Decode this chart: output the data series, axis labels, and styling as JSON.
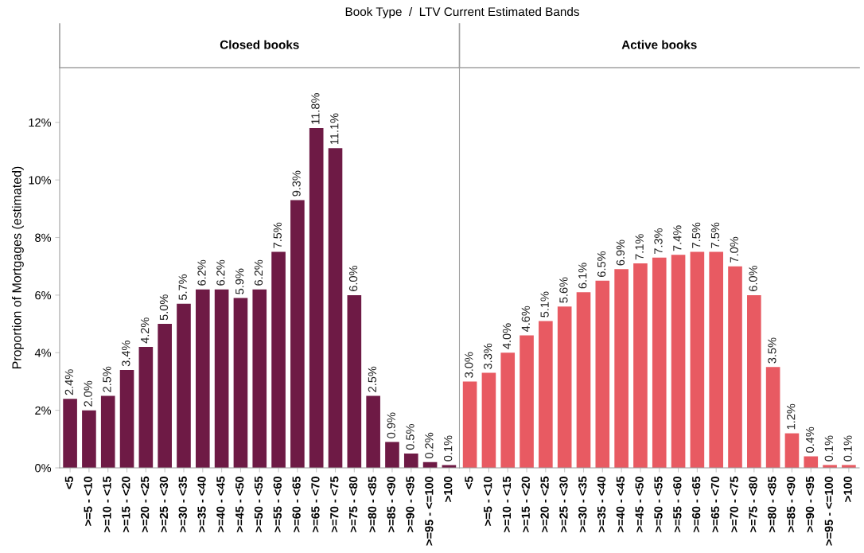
{
  "chart_data": [
    {
      "type": "bar",
      "title": "Closed books",
      "ylabel": "Proportion of Mortgages (estimated)",
      "annotations": [
        "Book Type  /  LTV Current Estimated Bands"
      ],
      "categories": [
        "<5",
        ">=5 - <10",
        ">=10 - <15",
        ">=15 - <20",
        ">=20 - <25",
        ">=25 - <30",
        ">=30 - <35",
        ">=35 - <40",
        ">=40 - <45",
        ">=45 - <50",
        ">=50 - <55",
        ">=55 - <60",
        ">=60 - <65",
        ">=65 - <70",
        ">=70 - <75",
        ">=75 - <80",
        ">=80 - <85",
        ">=85 - <90",
        ">=90 - <95",
        ">=95 - <=100",
        ">100"
      ],
      "series": [
        {
          "color": "#6e1a45",
          "values": [
            2.4,
            2.0,
            2.5,
            3.4,
            4.2,
            5.0,
            5.7,
            6.2,
            6.2,
            5.9,
            6.2,
            7.5,
            9.3,
            11.8,
            11.1,
            6.0,
            2.5,
            0.9,
            0.5,
            0.2,
            0.1
          ],
          "value_labels": [
            "2.4%",
            "2.0%",
            "2.5%",
            "3.4%",
            "4.2%",
            "5.0%",
            "5.7%",
            "6.2%",
            "6.2%",
            "5.9%",
            "6.2%",
            "7.5%",
            "9.3%",
            "11.8%",
            "11.1%",
            "6.0%",
            "2.5%",
            "0.9%",
            "0.5%",
            "0.2%",
            "0.1%"
          ]
        }
      ],
      "ylim": [
        0,
        13.9
      ],
      "yticks": [
        {
          "value": 0,
          "label": "0%"
        },
        {
          "value": 2,
          "label": "2%"
        },
        {
          "value": 4,
          "label": "4%"
        },
        {
          "value": 6,
          "label": "6%"
        },
        {
          "value": 8,
          "label": "8%"
        },
        {
          "value": 10,
          "label": "10%"
        },
        {
          "value": 12,
          "label": "12%"
        }
      ],
      "grid": false,
      "legend": false
    },
    {
      "type": "bar",
      "title": "Active books",
      "categories": [
        "<5",
        ">=5 - <10",
        ">=10 - <15",
        ">=15 - <20",
        ">=20 - <25",
        ">=25 - <30",
        ">=30 - <35",
        ">=35 - <40",
        ">=40 - <45",
        ">=45 - <50",
        ">=50 - <55",
        ">=55 - <60",
        ">=60 - <65",
        ">=65 - <70",
        ">=70 - <75",
        ">=75 - <80",
        ">=80 - <85",
        ">=85 - <90",
        ">=90 - <95",
        ">=95 - <=100",
        ">100"
      ],
      "series": [
        {
          "color": "#e85a62",
          "values": [
            3.0,
            3.3,
            4.0,
            4.6,
            5.1,
            5.6,
            6.1,
            6.5,
            6.9,
            7.1,
            7.3,
            7.4,
            7.5,
            7.5,
            7.0,
            6.0,
            3.5,
            1.2,
            0.4,
            0.1,
            0.1
          ],
          "value_labels": [
            "3.0%",
            "3.3%",
            "4.0%",
            "4.6%",
            "5.1%",
            "5.6%",
            "6.1%",
            "6.5%",
            "6.9%",
            "7.1%",
            "7.3%",
            "7.4%",
            "7.5%",
            "7.5%",
            "7.0%",
            "6.0%",
            "3.5%",
            "1.2%",
            "0.4%",
            "0.1%",
            "0.1%"
          ]
        }
      ],
      "ylim": [
        0,
        13.9
      ],
      "tick_labels": "x",
      "grid": false,
      "legend": false
    }
  ]
}
